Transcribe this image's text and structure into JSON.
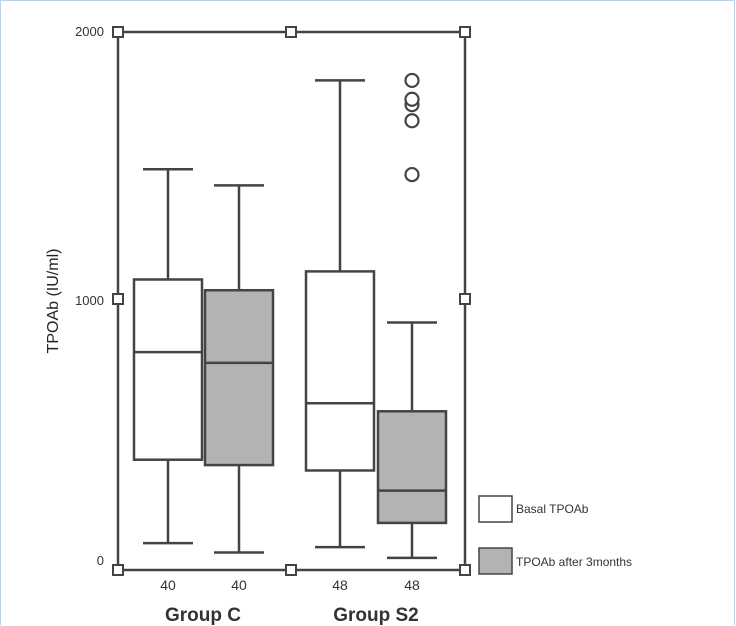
{
  "chart_data": {
    "type": "boxplot",
    "ylabel": "TPOAb (IU/ml)",
    "ylim": [
      0,
      2000
    ],
    "yticks": [
      "0",
      "1000",
      "2000"
    ],
    "grid": false,
    "legend_position": "bottom-right",
    "series": [
      {
        "name": "Basal TPOAb",
        "color": "#ffffff"
      },
      {
        "name": "TPOAb after 3months",
        "color": "#b3b3b3"
      }
    ],
    "groups": [
      {
        "label": "Group C",
        "boxes": [
          {
            "series": 0,
            "n": "40",
            "min": 100,
            "q1": 410,
            "median": 810,
            "q3": 1080,
            "max": 1490,
            "outliers": []
          },
          {
            "series": 1,
            "n": "40",
            "min": 65,
            "q1": 390,
            "median": 770,
            "q3": 1040,
            "max": 1430,
            "outliers": []
          }
        ]
      },
      {
        "label": "Group S2",
        "boxes": [
          {
            "series": 0,
            "n": "48",
            "min": 85,
            "q1": 370,
            "median": 620,
            "q3": 1110,
            "max": 1820,
            "outliers": []
          },
          {
            "series": 1,
            "n": "48",
            "min": 45,
            "q1": 175,
            "median": 295,
            "q3": 590,
            "max": 920,
            "outliers": [
              1470,
              1670,
              1730,
              1750,
              1820
            ]
          }
        ]
      }
    ]
  }
}
